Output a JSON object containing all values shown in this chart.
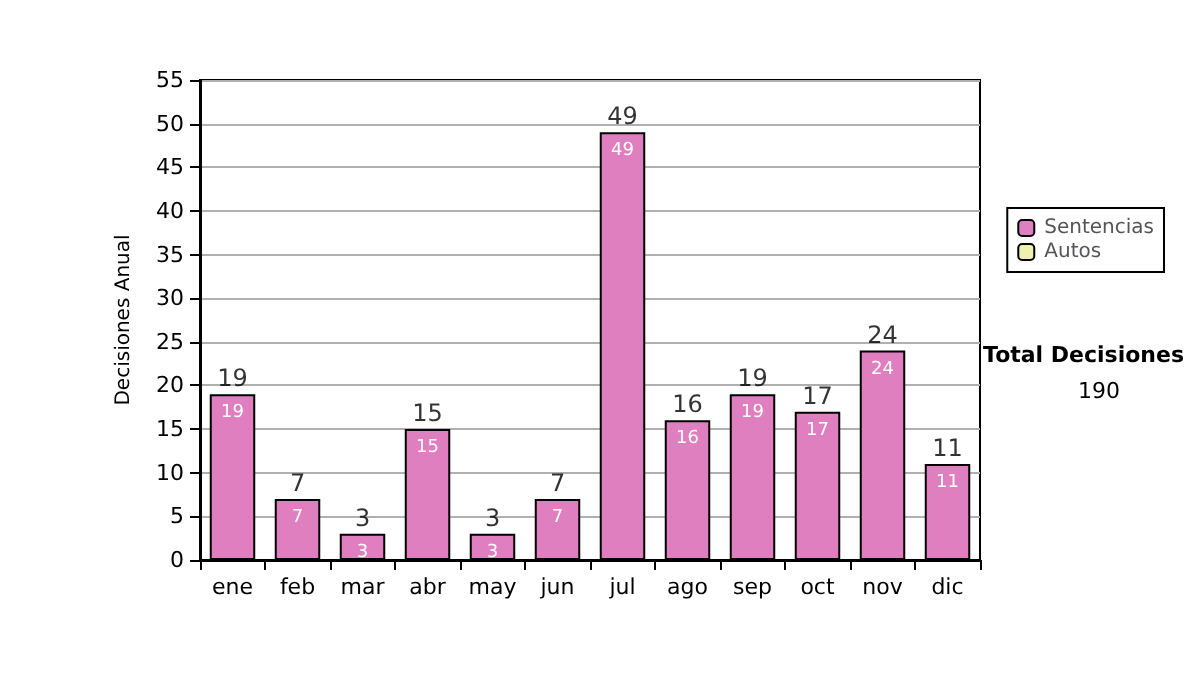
{
  "chart_data": {
    "type": "bar",
    "ylabel": "Decisiones Anual",
    "categories": [
      "ene",
      "feb",
      "mar",
      "abr",
      "may",
      "jun",
      "jul",
      "ago",
      "sep",
      "oct",
      "nov",
      "dic"
    ],
    "series": [
      {
        "name": "Sentencias",
        "color": "#e07fc0",
        "values": [
          19,
          7,
          3,
          15,
          3,
          7,
          49,
          16,
          19,
          17,
          24,
          11
        ],
        "value_labels": [
          "19",
          "7",
          "3",
          "15",
          "3",
          "7",
          "49",
          "16",
          "19",
          "17",
          "24",
          "11"
        ]
      },
      {
        "name": "Autos",
        "color": "#f0f0b0",
        "values": [
          0,
          0,
          0,
          0,
          0,
          0,
          0,
          0,
          0,
          0,
          0,
          0
        ]
      }
    ],
    "stacked": true,
    "totals": [
      "19",
      "7",
      "3",
      "15",
      "3",
      "7",
      "49",
      "16",
      "19",
      "17",
      "24",
      "11"
    ],
    "ylim": [
      0,
      55
    ],
    "yticks": [
      0,
      5,
      10,
      15,
      20,
      25,
      30,
      35,
      40,
      45,
      50,
      55
    ],
    "grid": "y",
    "legend": "right",
    "annotations": [
      "Total Decisiones",
      "190"
    ]
  }
}
